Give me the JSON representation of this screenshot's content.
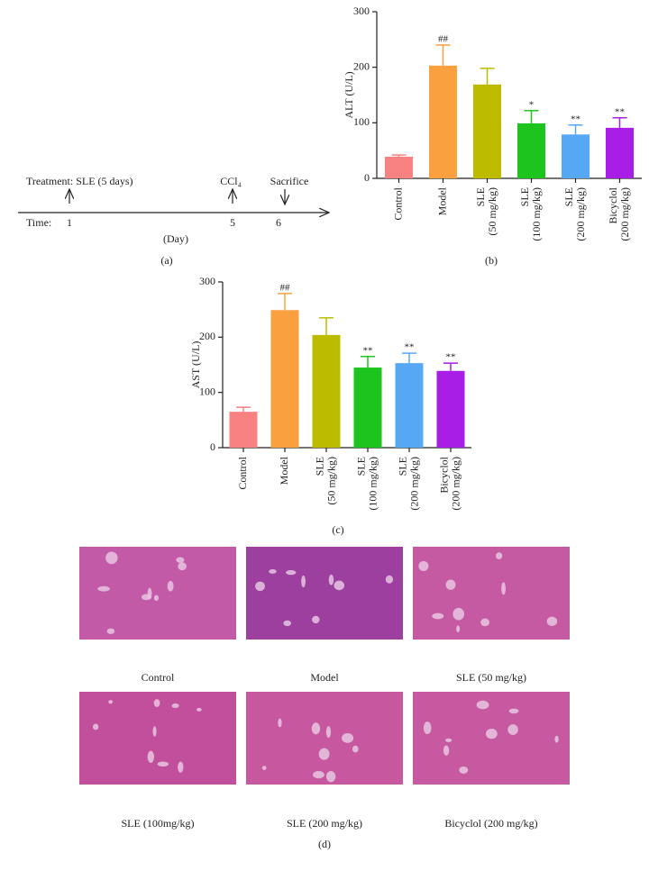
{
  "timeline": {
    "treatment": "Treatment: SLE (5 days)",
    "time_label": "Time:",
    "days": [
      "1",
      "5",
      "6"
    ],
    "ccl4": "CCl₄",
    "sacrifice": "Sacrifice",
    "unit": "(Day)",
    "panel": "(a)"
  },
  "chart_data": [
    {
      "type": "bar",
      "panel": "(b)",
      "ylabel": "ALT (U/L)",
      "categories": [
        "Control",
        "Model",
        "SLE\n(50 mg/kg)",
        "SLE\n(100 mg/kg)",
        "SLE\n(200 mg/kg)",
        "Bicyclol\n(200 mg/kg)"
      ],
      "values": [
        39,
        203,
        169,
        99,
        79,
        91
      ],
      "errors": [
        3,
        37,
        29,
        23,
        17,
        18
      ],
      "markers": [
        null,
        "##",
        null,
        "*",
        "**",
        "**"
      ],
      "colors": [
        "#f88282",
        "#faa03f",
        "#bdbb00",
        "#1ec41e",
        "#56a8f5",
        "#a81ee6"
      ],
      "ylim": [
        0,
        300
      ],
      "yticks": [
        0,
        100,
        200,
        300
      ]
    },
    {
      "type": "bar",
      "panel": "(c)",
      "ylabel": "AST (U/L)",
      "categories": [
        "Control",
        "Model",
        "SLE\n(50 mg/kg)",
        "SLE\n(100 mg/kg)",
        "SLE\n(200 mg/kg)",
        "Bicyclol\n(200 mg/kg)"
      ],
      "values": [
        65,
        249,
        204,
        145,
        153,
        139
      ],
      "errors": [
        8,
        30,
        31,
        20,
        18,
        14
      ],
      "markers": [
        null,
        "##",
        null,
        "**",
        "**",
        "**"
      ],
      "colors": [
        "#f88282",
        "#faa03f",
        "#bdbb00",
        "#1ec41e",
        "#56a8f5",
        "#a81ee6"
      ],
      "ylim": [
        0,
        300
      ],
      "yticks": [
        0,
        100,
        200,
        300
      ]
    }
  ],
  "histology": {
    "panel": "(d)",
    "images": [
      {
        "label": "Control"
      },
      {
        "label": "Model"
      },
      {
        "label": "SLE (50 mg/kg)"
      },
      {
        "label": "SLE (100mg/kg)"
      },
      {
        "label": "SLE (200 mg/kg)"
      },
      {
        "label": "Bicyclol (200 mg/kg)"
      }
    ]
  }
}
